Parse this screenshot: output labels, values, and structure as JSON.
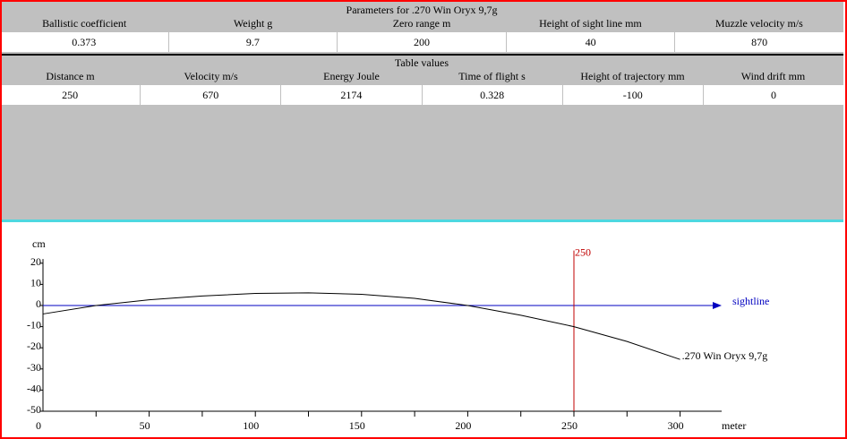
{
  "params": {
    "title": "Parameters for .270 Win Oryx 9,7g",
    "headers": [
      "Ballistic coefficient",
      "Weight g",
      "Zero range m",
      "Height of sight line mm",
      "Muzzle velocity m/s"
    ],
    "values": [
      "0.373",
      "9.7",
      "200",
      "40",
      "870"
    ]
  },
  "table": {
    "title": "Table values",
    "headers": [
      "Distance m",
      "Velocity m/s",
      "Energy Joule",
      "Time of flight s",
      "Height of trajectory mm",
      "Wind drift mm"
    ],
    "values": [
      "250",
      "670",
      "2174",
      "0.328",
      "-100",
      "0"
    ]
  },
  "chart_data": {
    "type": "line",
    "ylabel": "cm",
    "xlabel": "meter",
    "xlim": [
      0,
      320
    ],
    "ylim": [
      -50,
      22
    ],
    "xticks": [
      0,
      50,
      100,
      150,
      200,
      250,
      300
    ],
    "yticks": [
      20,
      10,
      0,
      -10,
      -20,
      -30,
      -40,
      -50
    ],
    "marker": {
      "x": 250,
      "label": "250",
      "color": "#c00000"
    },
    "sightline": {
      "label": "sightline",
      "color": "#0000c0"
    },
    "series": [
      {
        "name": ".270 Win Oryx 9,7g",
        "x": [
          0,
          25,
          50,
          75,
          100,
          125,
          150,
          175,
          200,
          225,
          250,
          275,
          300
        ],
        "y": [
          -4,
          0,
          2.7,
          4.5,
          5.7,
          6,
          5.3,
          3.4,
          0,
          -4.6,
          -10,
          -17,
          -25.5
        ]
      }
    ]
  }
}
